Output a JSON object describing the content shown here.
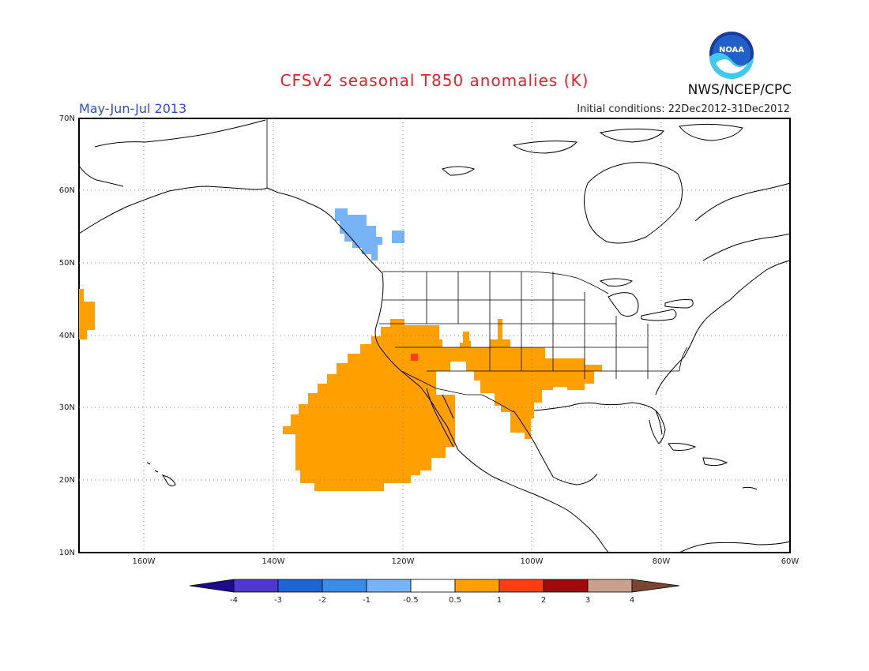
{
  "header": {
    "title": "CFSv2 seasonal T850 anomalies (K)",
    "agency": "NWS/NCEP/CPC",
    "logo_text": "NOAA",
    "season": "May-Jun-Jul 2013",
    "initial_conditions": "Initial conditions: 22Dec2012-31Dec2012"
  },
  "map": {
    "lat_labels": [
      "70N",
      "60N",
      "50N",
      "40N",
      "30N",
      "20N",
      "10N"
    ],
    "lon_labels": [
      "160W",
      "140W",
      "120W",
      "100W",
      "80W",
      "60W"
    ],
    "colors": {
      "warm_anomaly": "#ffa000",
      "strong_warm": "#ff3c14",
      "cool_anomaly": "#78b4f5",
      "coastline": "#000000",
      "grid": "#888888"
    }
  },
  "colorbar": {
    "labels": [
      "-4",
      "-3",
      "-2",
      "-1",
      "-0.5",
      "0.5",
      "1",
      "2",
      "3",
      "4"
    ],
    "colors": [
      "#1e0a8c",
      "#5037d2",
      "#1e64d2",
      "#3c8ce6",
      "#78b4f5",
      "#ffffff",
      "#ffa000",
      "#ff3c14",
      "#a00a0a",
      "#c8a08c",
      "#784632"
    ]
  }
}
